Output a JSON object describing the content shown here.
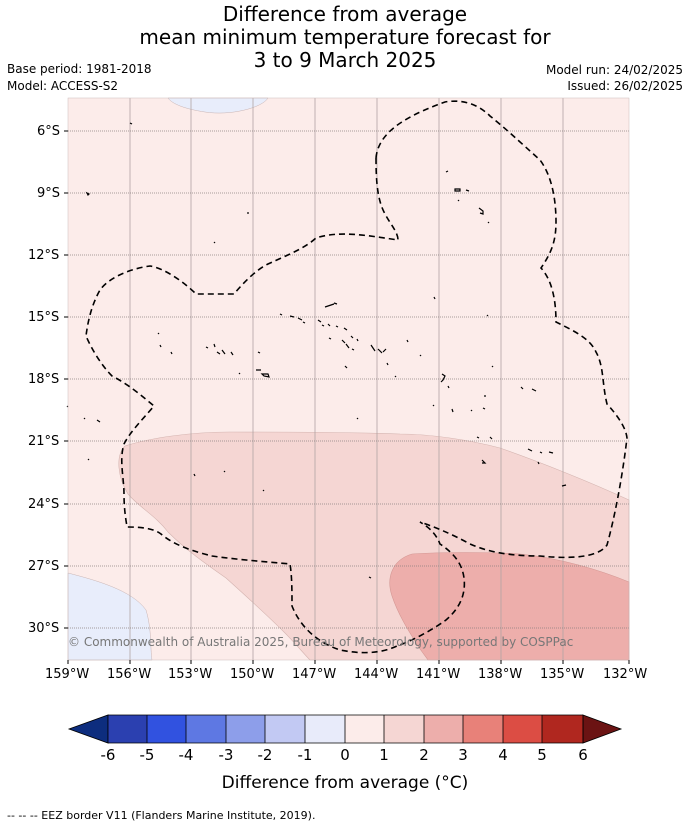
{
  "header": {
    "title_line1": "Difference from average",
    "title_line2": "mean minimum temperature forecast for",
    "title_line3": "3 to 9 March 2025",
    "base_period": "Base period: 1981-2018",
    "model": "Model: ACCESS-S2",
    "model_run": "Model run: 24/02/2025",
    "issued": "Issued: 26/02/2025"
  },
  "map": {
    "lat_labels": [
      "6°S",
      "9°S",
      "12°S",
      "15°S",
      "18°S",
      "21°S",
      "24°S",
      "27°S",
      "30°S"
    ],
    "lon_labels": [
      "159°W",
      "156°W",
      "153°W",
      "150°W",
      "147°W",
      "144°W",
      "141°W",
      "138°W",
      "135°W",
      "132°W"
    ],
    "copyright": "© Commonwealth of Australia 2025, Bureau of Meteorology, supported by COSPPac",
    "colors": {
      "background_0_1": "#fcecea",
      "band_1_2": "#f5d6d3",
      "band_2_3": "#edaeab",
      "band_neg1_0": "#e8edfb"
    }
  },
  "colorbar": {
    "labels": [
      "-6",
      "-5",
      "-4",
      "-3",
      "-2",
      "-1",
      "0",
      "1",
      "2",
      "3",
      "4",
      "5",
      "6"
    ],
    "colors": [
      "#0d2d7e",
      "#2b40b0",
      "#3152e0",
      "#5e78e3",
      "#8d9eea",
      "#c2c9f3",
      "#e8ebfa",
      "#fcecea",
      "#f5d6d3",
      "#edaeab",
      "#e88179",
      "#dc4d44",
      "#b0271f",
      "#6b1313"
    ],
    "title": "Difference from average (°C)"
  },
  "footer": {
    "eez_legend": "--  --  -- EEZ border V11 (Flanders Marine Institute, 2019)."
  }
}
